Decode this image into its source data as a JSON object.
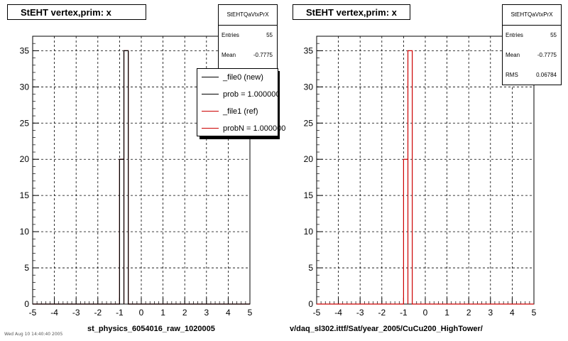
{
  "panels": [
    {
      "title": "StEHT  vertex,prim: x",
      "stats": {
        "name": "StEHTQaVtxPrX",
        "rows": [
          {
            "key": "Entries",
            "value": "55"
          },
          {
            "key": "Mean",
            "value": "-0.7775"
          }
        ]
      },
      "legend": [
        {
          "label": "_file0 (new)",
          "color": "#000000"
        },
        {
          "label": "prob = 1.000000",
          "color": "#000000"
        },
        {
          "label": "_file1 (ref)",
          "color": "#cc0000"
        },
        {
          "label": "probN = 1.000000",
          "color": "#cc0000"
        }
      ],
      "footer": "st_physics_6054016_raw_1020005"
    },
    {
      "title": "StEHT  vertex,prim: x",
      "stats": {
        "name": "StEHTQaVtxPrX",
        "rows": [
          {
            "key": "Entries",
            "value": "55"
          },
          {
            "key": "Mean",
            "value": "-0.7775"
          },
          {
            "key": "RMS",
            "value": "0.06784"
          }
        ]
      },
      "footer": "v/daq_sl302.ittf/Sat/year_2005/CuCu200_HighTower/"
    }
  ],
  "timestamp": "Wed Aug 10 14:40:40 2005",
  "colors": {
    "new": "#000000",
    "ref": "#cc0000",
    "grid": "#000000"
  },
  "chart_data": [
    {
      "type": "bar",
      "title": "StEHT  vertex,prim: x",
      "x_ticks": [
        -5,
        -4,
        -3,
        -2,
        -1,
        0,
        1,
        2,
        3,
        4,
        5
      ],
      "y_ticks": [
        0,
        5,
        10,
        15,
        20,
        25,
        30,
        35
      ],
      "xlim": [
        -5,
        5
      ],
      "ylim": [
        0,
        37
      ],
      "grid": true,
      "legend_position": "top-right",
      "series": [
        {
          "name": "_file0 (new)",
          "bins": [
            {
              "x0": -1.0,
              "x1": -0.8,
              "y": 20
            },
            {
              "x0": -0.8,
              "x1": -0.6,
              "y": 35
            }
          ]
        },
        {
          "name": "_file1 (ref)",
          "bins": [
            {
              "x0": -1.0,
              "x1": -0.8,
              "y": 20
            },
            {
              "x0": -0.8,
              "x1": -0.6,
              "y": 35
            }
          ]
        }
      ]
    },
    {
      "type": "bar",
      "title": "StEHT  vertex,prim: x",
      "x_ticks": [
        -5,
        -4,
        -3,
        -2,
        -1,
        0,
        1,
        2,
        3,
        4,
        5
      ],
      "y_ticks": [
        0,
        5,
        10,
        15,
        20,
        25,
        30,
        35
      ],
      "xlim": [
        -5,
        5
      ],
      "ylim": [
        0,
        37
      ],
      "grid": true,
      "series": [
        {
          "name": "",
          "bins": [
            {
              "x0": -1.0,
              "x1": -0.8,
              "y": 20
            },
            {
              "x0": -0.8,
              "x1": -0.6,
              "y": 35
            }
          ]
        }
      ]
    }
  ]
}
